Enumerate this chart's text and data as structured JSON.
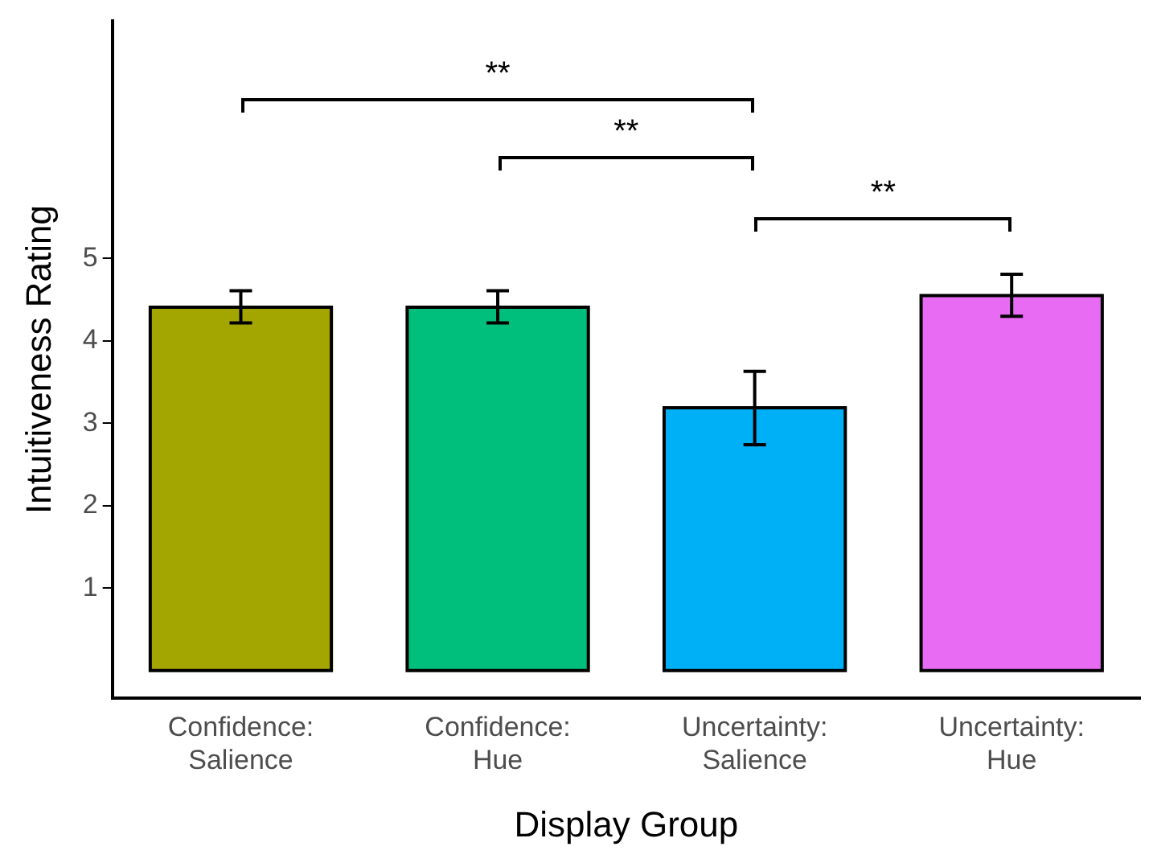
{
  "chart_data": {
    "type": "bar",
    "xlabel": "Display Group",
    "ylabel": "Intuitiveness Rating",
    "categories": [
      "Confidence: Salience",
      "Confidence: Hue",
      "Uncertainty: Salience",
      "Uncertainty: Hue"
    ],
    "values": [
      4.41,
      4.41,
      3.19,
      4.55
    ],
    "colors": [
      "#a3a500",
      "#00bf7d",
      "#00b0f6",
      "#e76bf3"
    ],
    "errors": [
      [
        4.22,
        4.61
      ],
      [
        4.22,
        4.61
      ],
      [
        2.74,
        3.63
      ],
      [
        4.3,
        4.81
      ]
    ],
    "ylim": [
      -0.33,
      7.88
    ],
    "yticks": [
      1,
      2,
      3,
      4,
      5
    ],
    "grid": false,
    "legend": false,
    "annotations": [
      "**",
      "**",
      "**"
    ]
  }
}
